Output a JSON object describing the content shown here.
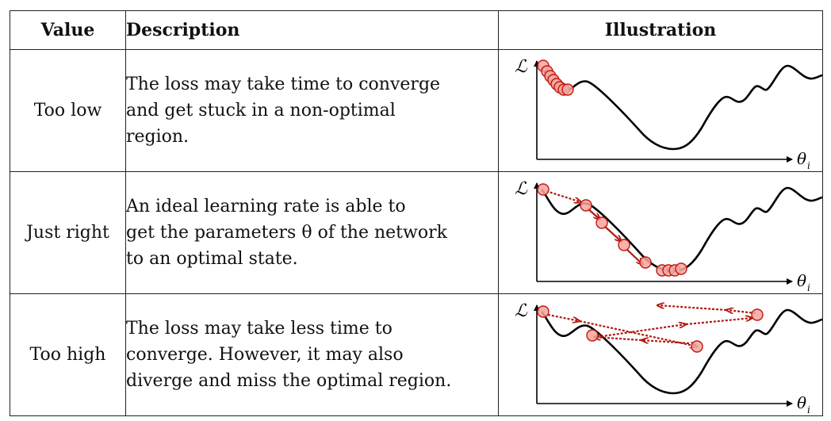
{
  "table": {
    "headers": {
      "value": "Value",
      "description": "Description",
      "illustration": "Illustration"
    },
    "rows": [
      {
        "value": "Too low",
        "description": [
          "The loss may take time to converge",
          "and get stuck in a non-optimal",
          "region."
        ]
      },
      {
        "value": "Just right",
        "description": [
          "An ideal learning rate is able to",
          "get the parameters θ of the network",
          "to an optimal state."
        ]
      },
      {
        "value": "Too high",
        "description": [
          "The loss may take less time to",
          "converge. However, it may also",
          "diverge and miss the optimal region."
        ]
      }
    ],
    "axis": {
      "y_label": "ℒ",
      "x_label": "θ",
      "x_subscript": "i"
    }
  },
  "colors": {
    "curve": "#000000",
    "marker_fill": "#f4a6a0",
    "marker_stroke": "#c0190f",
    "arrow": "#b01a10"
  }
}
